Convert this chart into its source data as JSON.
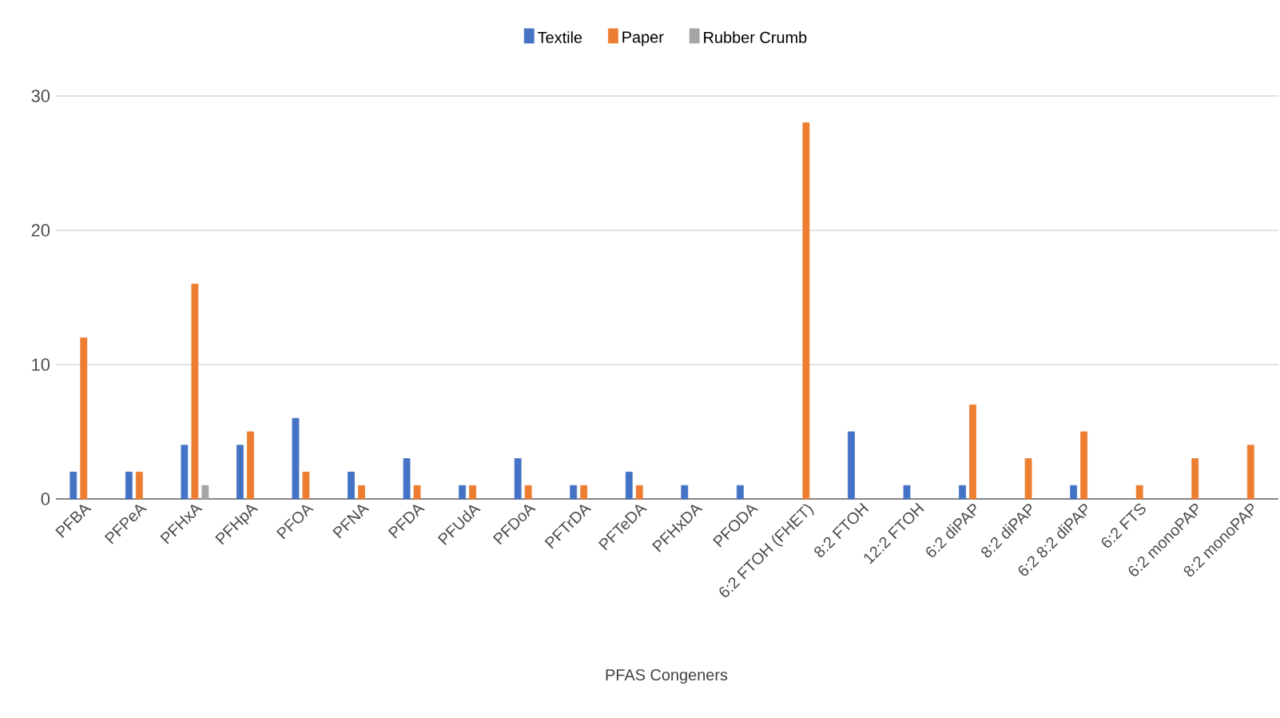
{
  "chart_data": {
    "type": "bar",
    "xlabel": "PFAS Congeners",
    "categories": [
      "PFBA",
      "PFPeA",
      "PFHxA",
      "PFHpA",
      "PFOA",
      "PFNA",
      "PFDA",
      "PFUdA",
      "PFDoA",
      "PFTrDA",
      "PFTeDA",
      "PFHxDA",
      "PFODA",
      "6:2 FTOH (FHET)",
      "8:2 FTOH",
      "12:2 FTOH",
      "6:2 diPAP",
      "8:2 diPAP",
      "6:2 8:2 diPAP",
      "6:2 FTS",
      "6:2 monoPAP",
      "8:2 monoPAP"
    ],
    "series": [
      {
        "name": "Textile",
        "color": "#4472c4",
        "values": [
          2,
          2,
          4,
          4,
          6,
          2,
          3,
          1,
          3,
          1,
          2,
          1,
          1,
          null,
          5,
          1,
          1,
          null,
          1,
          null,
          null,
          null
        ]
      },
      {
        "name": "Paper",
        "color": "#ed7d31",
        "values": [
          12,
          2,
          16,
          5,
          2,
          1,
          1,
          1,
          1,
          1,
          1,
          null,
          null,
          28,
          null,
          null,
          7,
          3,
          5,
          1,
          3,
          4
        ]
      },
      {
        "name": "Rubber Crumb",
        "color": "#a5a5a5",
        "values": [
          null,
          null,
          1,
          null,
          null,
          null,
          null,
          null,
          null,
          null,
          null,
          null,
          null,
          null,
          null,
          null,
          null,
          null,
          null,
          null,
          null,
          null
        ]
      }
    ],
    "ylim": [
      0,
      30
    ],
    "yticks": [
      0,
      10,
      20,
      30
    ],
    "grid": "y",
    "legend": "top"
  }
}
